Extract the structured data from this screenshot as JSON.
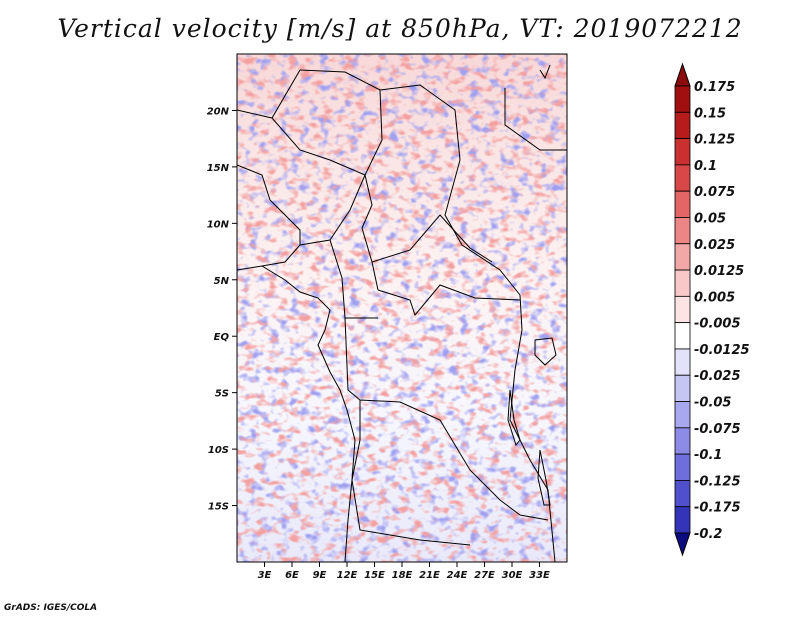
{
  "title": "Vertical velocity [m/s] at 850hPa, VT: 2019072212",
  "credit": "GrADS: IGES/COLA",
  "map": {
    "lat_range": [
      -20,
      25
    ],
    "lon_range": [
      0,
      36
    ],
    "lat_ticks": [
      {
        "value": 20,
        "label": "20N"
      },
      {
        "value": 15,
        "label": "15N"
      },
      {
        "value": 10,
        "label": "10N"
      },
      {
        "value": 5,
        "label": "5N"
      },
      {
        "value": 0,
        "label": "EQ"
      },
      {
        "value": -5,
        "label": "5S"
      },
      {
        "value": -10,
        "label": "10S"
      },
      {
        "value": -15,
        "label": "15S"
      }
    ],
    "lon_ticks": [
      {
        "value": 3,
        "label": "3E"
      },
      {
        "value": 6,
        "label": "6E"
      },
      {
        "value": 9,
        "label": "9E"
      },
      {
        "value": 12,
        "label": "12E"
      },
      {
        "value": 15,
        "label": "15E"
      },
      {
        "value": 18,
        "label": "18E"
      },
      {
        "value": 21,
        "label": "21E"
      },
      {
        "value": 24,
        "label": "24E"
      },
      {
        "value": 27,
        "label": "27E"
      },
      {
        "value": 30,
        "label": "30E"
      },
      {
        "value": 33,
        "label": "33E"
      }
    ]
  },
  "colorbar": {
    "units": "m/s",
    "levels": [
      {
        "label": "0.175",
        "color": "#a01010"
      },
      {
        "label": "0.15",
        "color": "#b51c1c"
      },
      {
        "label": "0.125",
        "color": "#c93030"
      },
      {
        "label": "0.1",
        "color": "#d84848"
      },
      {
        "label": "0.075",
        "color": "#e36565"
      },
      {
        "label": "0.05",
        "color": "#ec8585"
      },
      {
        "label": "0.025",
        "color": "#f3a8a8"
      },
      {
        "label": "0.0125",
        "color": "#f8c8c8"
      },
      {
        "label": "0.005",
        "color": "#fce4e4"
      },
      {
        "label": "-0.005",
        "color": "#ffffff"
      },
      {
        "label": "-0.0125",
        "color": "#e2e2fa"
      },
      {
        "label": "-0.025",
        "color": "#c6c6f4"
      },
      {
        "label": "-0.05",
        "color": "#a8a8ee"
      },
      {
        "label": "-0.075",
        "color": "#8c8ce6"
      },
      {
        "label": "-0.1",
        "color": "#6e6edc"
      },
      {
        "label": "-0.125",
        "color": "#5050cc"
      },
      {
        "label": "-0.175",
        "color": "#3434b8"
      },
      {
        "label": "-0.2",
        "color": "#1c1c9c"
      }
    ],
    "top_arrow_color": "#8a0c0c",
    "bottom_arrow_color": "#0c0c80"
  }
}
